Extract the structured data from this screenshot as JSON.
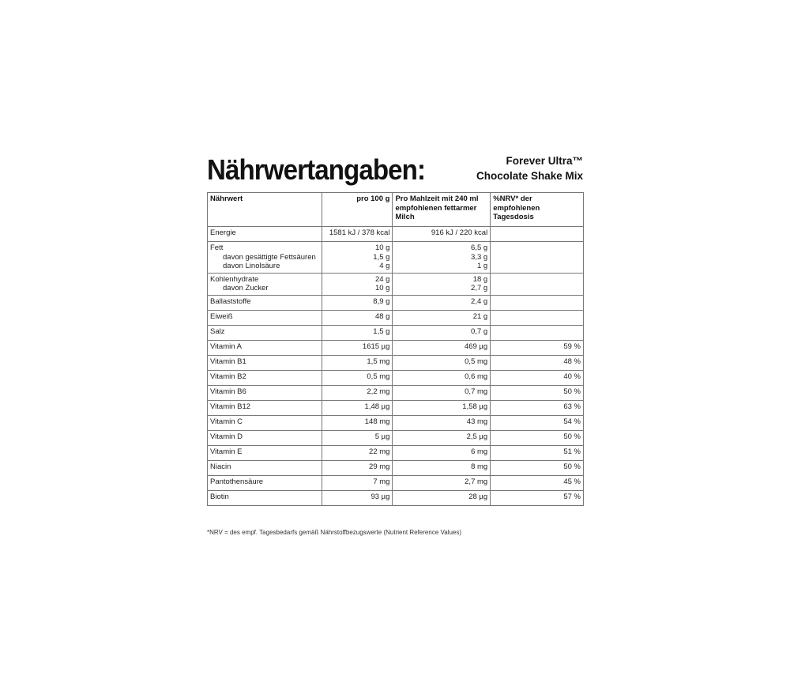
{
  "title": "Nährwertangaben:",
  "product": [
    "Forever Ultra™",
    "Chocolate Shake Mix"
  ],
  "headers": [
    "Nährwert",
    "pro 100 g",
    "Pro Mahlzeit mit 240 ml empfohlenen fettarmer Milch",
    "%NRV* der empfohlenen Tagesdosis"
  ],
  "rows": [
    {
      "name": [
        "Energie"
      ],
      "p100": [
        "1581 kJ / 378 kcal"
      ],
      "meal": [
        "916 kJ / 220 kcal"
      ],
      "nrv": ""
    },
    {
      "name": [
        "Fett",
        "davon gesättigte Fettsäuren",
        "davon Linolsäure"
      ],
      "p100": [
        "10 g",
        "1,5 g",
        "4 g"
      ],
      "meal": [
        "6,5 g",
        "3,3 g",
        "1 g"
      ],
      "nrv": ""
    },
    {
      "name": [
        "Kohlenhydrate",
        "davon Zucker"
      ],
      "p100": [
        "24 g",
        "10 g"
      ],
      "meal": [
        "18 g",
        "2,7 g"
      ],
      "nrv": ""
    },
    {
      "name": [
        "Ballaststoffe"
      ],
      "p100": [
        "8,9 g"
      ],
      "meal": [
        "2,4 g"
      ],
      "nrv": ""
    },
    {
      "name": [
        "Eiweiß"
      ],
      "p100": [
        "48 g"
      ],
      "meal": [
        "21 g"
      ],
      "nrv": ""
    },
    {
      "name": [
        "Salz"
      ],
      "p100": [
        "1,5 g"
      ],
      "meal": [
        "0,7 g"
      ],
      "nrv": ""
    },
    {
      "name": [
        "Vitamin A"
      ],
      "p100": [
        "1615 µg"
      ],
      "meal": [
        "469 µg"
      ],
      "nrv": "59 %"
    },
    {
      "name": [
        "Vitamin B1"
      ],
      "p100": [
        "1,5 mg"
      ],
      "meal": [
        "0,5 mg"
      ],
      "nrv": "48 %"
    },
    {
      "name": [
        "Vitamin B2"
      ],
      "p100": [
        "0,5 mg"
      ],
      "meal": [
        "0,6 mg"
      ],
      "nrv": "40 %"
    },
    {
      "name": [
        "Vitamin B6"
      ],
      "p100": [
        "2,2 mg"
      ],
      "meal": [
        "0,7 mg"
      ],
      "nrv": "50 %"
    },
    {
      "name": [
        "Vitamin B12"
      ],
      "p100": [
        "1,48 µg"
      ],
      "meal": [
        "1,58 µg"
      ],
      "nrv": "63 %"
    },
    {
      "name": [
        "Vitamin C"
      ],
      "p100": [
        "148 mg"
      ],
      "meal": [
        "43 mg"
      ],
      "nrv": "54 %"
    },
    {
      "name": [
        "Vitamin D"
      ],
      "p100": [
        "5 µg"
      ],
      "meal": [
        "2,5 µg"
      ],
      "nrv": "50 %"
    },
    {
      "name": [
        "Vitamin E"
      ],
      "p100": [
        "22 mg"
      ],
      "meal": [
        "6 mg"
      ],
      "nrv": "51 %"
    },
    {
      "name": [
        "Niacin"
      ],
      "p100": [
        "29 mg"
      ],
      "meal": [
        "8 mg"
      ],
      "nrv": "50 %"
    },
    {
      "name": [
        "Pantothensäure"
      ],
      "p100": [
        "7 mg"
      ],
      "meal": [
        "2,7 mg"
      ],
      "nrv": "45 %"
    },
    {
      "name": [
        "Biotin"
      ],
      "p100": [
        "93 µg"
      ],
      "meal": [
        "28 µg"
      ],
      "nrv": "57 %"
    }
  ],
  "footnote": "*NRV = des empf. Tagesbedarfs gemäß Nährstoffbezugswerte (Nutrient Reference Values)"
}
